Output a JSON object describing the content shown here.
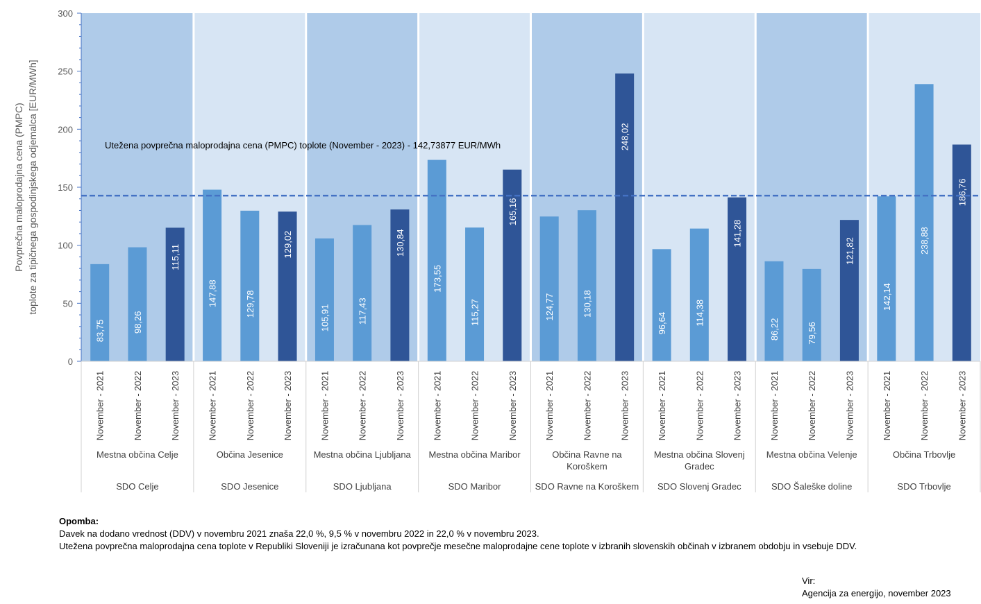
{
  "chart_data": {
    "type": "bar",
    "title": "",
    "ylabel": [
      "Povprečna maloprodajna cena (PMPC)",
      "toplote za tipičnega gospodinjskega odjemalca  [EUR/MWh]"
    ],
    "ylim": [
      0,
      300
    ],
    "yticks": [
      0,
      50,
      100,
      150,
      200,
      250,
      300
    ],
    "grid": false,
    "periods": [
      "November - 2021",
      "November - 2022",
      "November - 2023"
    ],
    "groups": [
      {
        "sdo": "SDO Celje",
        "municipality": [
          "Mestna občina Celje"
        ],
        "values": [
          83.75,
          98.26,
          115.11
        ],
        "labels": [
          "83,75",
          "98,26",
          "115,11"
        ]
      },
      {
        "sdo": "SDO Jesenice",
        "municipality": [
          "Občina Jesenice"
        ],
        "values": [
          147.88,
          129.78,
          129.02
        ],
        "labels": [
          "147,88",
          "129,78",
          "129,02"
        ]
      },
      {
        "sdo": "SDO Ljubljana",
        "municipality": [
          "Mestna občina Ljubljana"
        ],
        "values": [
          105.91,
          117.43,
          130.84
        ],
        "labels": [
          "105,91",
          "117,43",
          "130,84"
        ]
      },
      {
        "sdo": "SDO Maribor",
        "municipality": [
          "Mestna občina Maribor"
        ],
        "values": [
          173.55,
          115.27,
          165.16
        ],
        "labels": [
          "173,55",
          "115,27",
          "165,16"
        ]
      },
      {
        "sdo": "SDO Ravne na Koroškem",
        "municipality": [
          "Občina Ravne na",
          "Koroškem"
        ],
        "values": [
          124.77,
          130.18,
          248.02
        ],
        "labels": [
          "124,77",
          "130,18",
          "248,02"
        ]
      },
      {
        "sdo": "SDO Slovenj Gradec",
        "municipality": [
          "Mestna občina Slovenj",
          "Gradec"
        ],
        "values": [
          96.64,
          114.38,
          141.28
        ],
        "labels": [
          "96,64",
          "114,38",
          "141,28"
        ]
      },
      {
        "sdo": "SDO Šaleške doline",
        "municipality": [
          "Mestna občina Velenje"
        ],
        "values": [
          86.22,
          79.56,
          121.82
        ],
        "labels": [
          "86,22",
          "79,56",
          "121,82"
        ]
      },
      {
        "sdo": "SDO Trbovlje",
        "municipality": [
          "Občina Trbovlje"
        ],
        "values": [
          142.14,
          238.88,
          186.76
        ],
        "labels": [
          "142,14",
          "238,88",
          "186,76"
        ]
      }
    ],
    "average": {
      "value": 142.73877,
      "label": "Utežena povprečna maloprodajna cena (PMPC) toplote (November - 2023) - 142,73877  EUR/MWh"
    },
    "colors": {
      "bar_2021": "#5b9bd5",
      "bar_2022": "#5b9bd5",
      "bar_2023": "#2f5597",
      "band_dark": "#afcbe9",
      "band_light": "#d7e5f4",
      "average_line": "#4472c4"
    }
  },
  "note": {
    "title": "Opomba:",
    "lines": [
      "Davek na dodano vrednost (DDV) v novembru 2021 znaša 22,0 %, 9,5 % v novembru 2022 in 22,0 % v novembru 2023.",
      "Utežena povprečna maloprodajna cena toplote v Republiki Sloveniji je izračunana kot povprečje mesečne maloprodajne cene toplote v izbranih slovenskih občinah v izbranem obdobju in vsebuje DDV."
    ]
  },
  "source": {
    "label": "Vir:",
    "text": "Agencija za energijo, november 2023"
  }
}
